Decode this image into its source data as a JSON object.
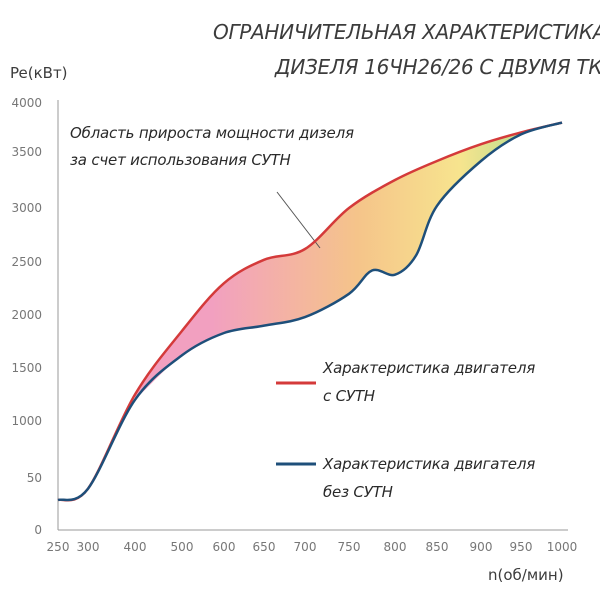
{
  "chart_data": {
    "type": "line",
    "title": [
      "ОГРАНИЧИТЕЛЬНАЯ ХАРАКТЕРИСТИКА",
      "ДИЗЕЛЯ 16ЧН26/26 С ДВУМЯ ТК"
    ],
    "xlabel": "n(об/мин)",
    "ylabel": "Pe(кВт)",
    "x_ticks": [
      "250",
      "300",
      "400",
      "500",
      "600",
      "650",
      "700",
      "750",
      "800",
      "850",
      "900",
      "950",
      "1000"
    ],
    "y_ticks": [
      "0",
      "50",
      "1000",
      "1500",
      "2000",
      "2500",
      "3000",
      "3500",
      "4000"
    ],
    "annotation": [
      "Область прироста мощности дизеля",
      "за счет использования СУТН"
    ],
    "grid": false,
    "legend_position": "right",
    "series": [
      {
        "name": [
          "Характеристика двигателя",
          "с СУТН"
        ],
        "color": "#d43a3a",
        "points": [
          [
            250,
            300
          ],
          [
            300,
            400
          ],
          [
            400,
            1250
          ],
          [
            500,
            1850
          ],
          [
            600,
            2300
          ],
          [
            650,
            2520
          ],
          [
            700,
            2620
          ],
          [
            750,
            3000
          ],
          [
            800,
            3250
          ],
          [
            850,
            3420
          ],
          [
            900,
            3580
          ],
          [
            950,
            3700
          ],
          [
            1000,
            3800
          ]
        ]
      },
      {
        "name": [
          "Характеристика двигателя",
          "без СУТН"
        ],
        "color": "#1e4f7a",
        "points": [
          [
            250,
            300
          ],
          [
            300,
            400
          ],
          [
            400,
            1200
          ],
          [
            500,
            1620
          ],
          [
            600,
            1830
          ],
          [
            650,
            1900
          ],
          [
            700,
            1980
          ],
          [
            750,
            2200
          ],
          [
            775,
            2420
          ],
          [
            800,
            2380
          ],
          [
            825,
            2560
          ],
          [
            850,
            3020
          ],
          [
            900,
            3420
          ],
          [
            950,
            3680
          ],
          [
            1000,
            3800
          ]
        ]
      }
    ],
    "fill_between": {
      "colors": [
        "#f2a0c0",
        "#f5c48a",
        "#f7e48e",
        "#a8dc8e"
      ]
    }
  }
}
